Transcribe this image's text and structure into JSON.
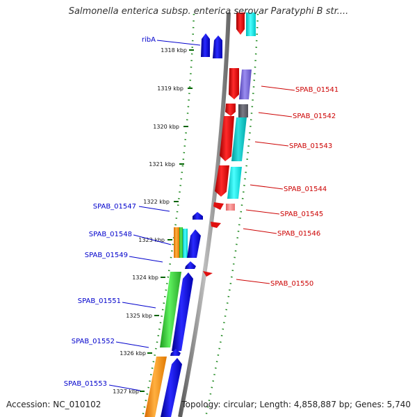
{
  "header": {
    "title": "Salmonella enterica subsp. enterica serovar Paratyphi B str...."
  },
  "footer": {
    "accession": "Accession: NC_010102",
    "summary": "Topology: circular; Length: 4,858,887 bp; Genes: 5,740"
  },
  "colors": {
    "forward_label": "#0000cc",
    "reverse_label": "#cc0000",
    "backbone": "#888888",
    "guide_dots": "#228b22"
  },
  "scale": {
    "ticks": [
      {
        "label": "1318 kbp"
      },
      {
        "label": "1319 kbp"
      },
      {
        "label": "1320 kbp"
      },
      {
        "label": "1321 kbp"
      },
      {
        "label": "1322 kbp"
      },
      {
        "label": "1323 kbp"
      },
      {
        "label": "1324 kbp"
      },
      {
        "label": "1325 kbp"
      },
      {
        "label": "1326 kbp"
      },
      {
        "label": "1327 kbp"
      }
    ]
  },
  "genes": [
    {
      "label": "ribA",
      "strand": "forward"
    },
    {
      "label": "SPAB_01541",
      "strand": "reverse"
    },
    {
      "label": "SPAB_01542",
      "strand": "reverse"
    },
    {
      "label": "SPAB_01543",
      "strand": "reverse"
    },
    {
      "label": "SPAB_01544",
      "strand": "reverse"
    },
    {
      "label": "SPAB_01545",
      "strand": "reverse"
    },
    {
      "label": "SPAB_01546",
      "strand": "reverse"
    },
    {
      "label": "SPAB_01547",
      "strand": "forward"
    },
    {
      "label": "SPAB_01548",
      "strand": "forward"
    },
    {
      "label": "SPAB_01549",
      "strand": "forward"
    },
    {
      "label": "SPAB_01550",
      "strand": "reverse"
    },
    {
      "label": "SPAB_01551",
      "strand": "forward"
    },
    {
      "label": "SPAB_01552",
      "strand": "forward"
    },
    {
      "label": "SPAB_01553",
      "strand": "forward"
    }
  ]
}
